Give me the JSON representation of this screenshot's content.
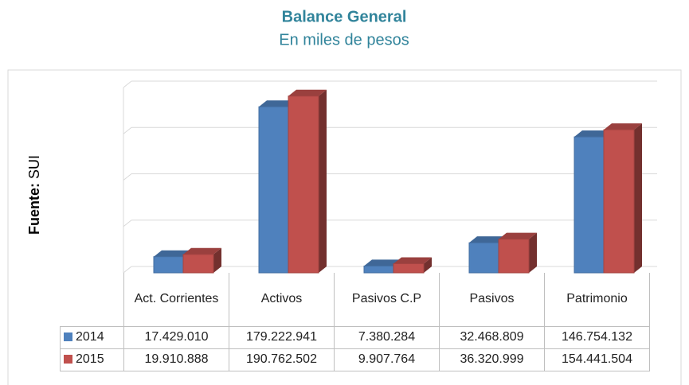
{
  "chart_data": {
    "type": "bar3d",
    "title": "Balance General",
    "subtitle": "En miles de pesos",
    "source_label": "Fuente:",
    "source": "SUI",
    "categories": [
      "Act. Corrientes",
      "Activos",
      "Pasivos C.P",
      "Pasivos",
      "Patrimonio"
    ],
    "series": [
      {
        "name": "2014",
        "color": "#4f81bd",
        "values": [
          17429010,
          179222941,
          7380284,
          32468809,
          146754132
        ],
        "value_labels": [
          "17.429.010",
          "179.222.941",
          "7.380.284",
          "32.468.809",
          "146.754.132"
        ]
      },
      {
        "name": "2015",
        "color": "#c0504d",
        "values": [
          19910888,
          190762502,
          9907764,
          36320999,
          154441504
        ],
        "value_labels": [
          "19.910.888",
          "190.762.502",
          "9.907.764",
          "36.320.999",
          "154.441.504"
        ]
      }
    ],
    "ylim": [
      0,
      200000000
    ],
    "yticks": [
      0,
      50000000,
      100000000,
      150000000,
      200000000
    ],
    "grid": true
  }
}
